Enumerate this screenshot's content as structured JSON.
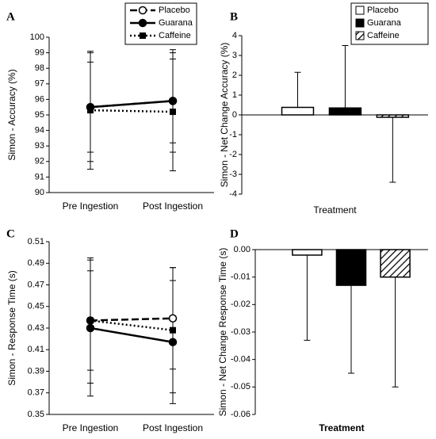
{
  "chart_data": [
    {
      "type": "line",
      "panel": "A",
      "ylabel": "Simon - Accuracy (%)",
      "categories": [
        "Pre Ingestion",
        "Post Ingestion"
      ],
      "series": [
        {
          "name": "Placebo",
          "color": "#000000",
          "dash": "dashed",
          "marker": "open-circle",
          "values": [
            95.5,
            95.9
          ],
          "errors": [
            3.5,
            3.3
          ]
        },
        {
          "name": "Guarana",
          "color": "#000000",
          "dash": "solid",
          "marker": "circle",
          "values": [
            95.5,
            95.9
          ],
          "errors": [
            2.9,
            2.7
          ]
        },
        {
          "name": "Caffeine",
          "color": "#000000",
          "dash": "dotted",
          "marker": "square",
          "values": [
            95.3,
            95.2
          ],
          "errors": [
            3.8,
            3.8
          ]
        }
      ],
      "ylim": [
        90,
        100
      ],
      "yticks": [
        90,
        91,
        92,
        93,
        94,
        95,
        96,
        97,
        98,
        99,
        100
      ],
      "legend": "top"
    },
    {
      "type": "bar",
      "panel": "B",
      "ylabel": "Simon - Net Change Accuracy (%)",
      "xlabel": "Treatment",
      "series": [
        {
          "name": "Placebo",
          "color": "#ffffff",
          "values": [
            0.38
          ],
          "errors": [
            1.77
          ]
        },
        {
          "name": "Guarana",
          "color": "#000000",
          "values": [
            0.35
          ],
          "errors": [
            3.15
          ]
        },
        {
          "name": "Caffeine",
          "color": "#ffffff",
          "pattern": "diagonal",
          "values": [
            -0.12
          ],
          "errors": [
            3.28
          ]
        }
      ],
      "ylim": [
        -4,
        4
      ],
      "yticks": [
        -4,
        -3,
        -2,
        -1,
        0,
        1,
        2,
        3,
        4
      ],
      "legend": "top-right"
    },
    {
      "type": "line",
      "panel": "C",
      "ylabel": "Simon - Response Time (s)",
      "categories": [
        "Pre Ingestion",
        "Post Ingestion"
      ],
      "series": [
        {
          "name": "Placebo",
          "color": "#000000",
          "dash": "dashed",
          "marker": "open-circle",
          "values": [
            0.437,
            0.439
          ],
          "errors": [
            0.046,
            0.047
          ]
        },
        {
          "name": "Guarana",
          "color": "#000000",
          "dash": "solid",
          "marker": "circle",
          "values": [
            0.43,
            0.417
          ],
          "errors": [
            0.063,
            0.057
          ]
        },
        {
          "name": "Caffeine",
          "color": "#000000",
          "dash": "dotted",
          "marker": "square",
          "values": [
            0.437,
            0.428
          ],
          "errors": [
            0.058,
            0.058
          ]
        }
      ],
      "ylim": [
        0.35,
        0.51
      ],
      "yticks": [
        0.35,
        0.37,
        0.39,
        0.41,
        0.43,
        0.45,
        0.47,
        0.49,
        0.51
      ]
    },
    {
      "type": "bar",
      "panel": "D",
      "ylabel": "Simon - Net Change Response Time (s)",
      "xlabel": "Treatment",
      "series": [
        {
          "name": "Placebo",
          "color": "#ffffff",
          "values": [
            -0.002
          ],
          "errors": [
            0.031
          ]
        },
        {
          "name": "Guarana",
          "color": "#000000",
          "values": [
            -0.013
          ],
          "errors": [
            0.032
          ]
        },
        {
          "name": "Caffeine",
          "color": "#ffffff",
          "pattern": "diagonal",
          "values": [
            -0.01
          ],
          "errors": [
            0.04
          ]
        }
      ],
      "ylim": [
        -0.06,
        0
      ],
      "yticks": [
        -0.06,
        -0.05,
        -0.04,
        -0.03,
        -0.02,
        -0.01,
        {
          "value": 0,
          "label": "0.00"
        }
      ]
    }
  ]
}
